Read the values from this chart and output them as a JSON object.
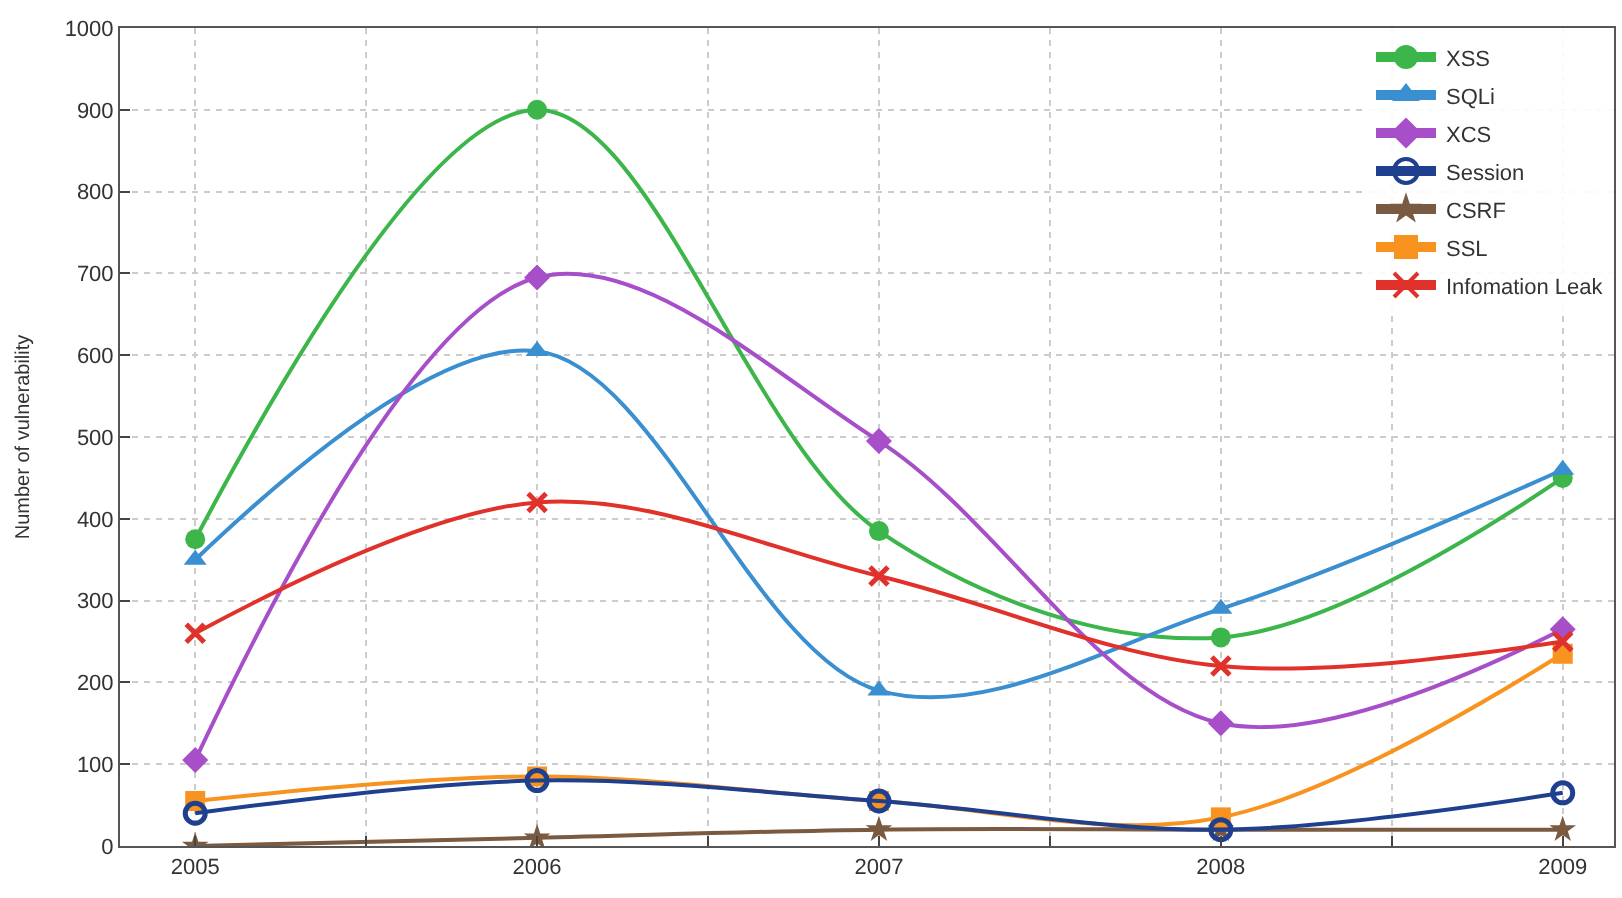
{
  "chart_data": {
    "type": "line",
    "ylabel": "Number of vulnerability",
    "x": [
      2005,
      2006,
      2007,
      2008,
      2009
    ],
    "xlim": [
      2004.78,
      2009.15
    ],
    "xticks": [
      2005,
      {
        "value": 2005.5,
        "label": null
      },
      2006,
      {
        "value": 2006.5,
        "label": null
      },
      2007,
      {
        "value": 2007.5,
        "label": null
      },
      2008,
      {
        "value": 2008.5,
        "label": null
      },
      2009
    ],
    "ylim": [
      0,
      1000
    ],
    "yticks": [
      0,
      100,
      200,
      300,
      400,
      500,
      600,
      700,
      800,
      900,
      1000
    ],
    "grid": true,
    "legend": "top right",
    "line_style": "solid",
    "series": [
      {
        "name": "XSS",
        "color": "#3cb54a",
        "marker": "circle",
        "values": [
          375,
          900,
          385,
          255,
          450
        ]
      },
      {
        "name": "SQLi",
        "color": "#3a8fd0",
        "marker": "triangle",
        "values": [
          350,
          605,
          190,
          290,
          460
        ]
      },
      {
        "name": "XCS",
        "color": "#a64fc9",
        "marker": "diamond",
        "values": [
          105,
          695,
          495,
          150,
          265
        ]
      },
      {
        "name": "Session",
        "color": "#1f3f8f",
        "marker": "circle-open",
        "values": [
          40,
          80,
          55,
          20,
          65
        ]
      },
      {
        "name": "CSRF",
        "color": "#7a5a40",
        "marker": "star",
        "values": [
          0,
          10,
          20,
          20,
          20
        ]
      },
      {
        "name": "SSL",
        "color": "#f7931e",
        "marker": "square",
        "values": [
          55,
          85,
          55,
          35,
          235
        ]
      },
      {
        "name": "Infomation Leak",
        "color": "#e0312a",
        "marker": "cross",
        "values": [
          260,
          420,
          330,
          220,
          250
        ]
      }
    ]
  }
}
